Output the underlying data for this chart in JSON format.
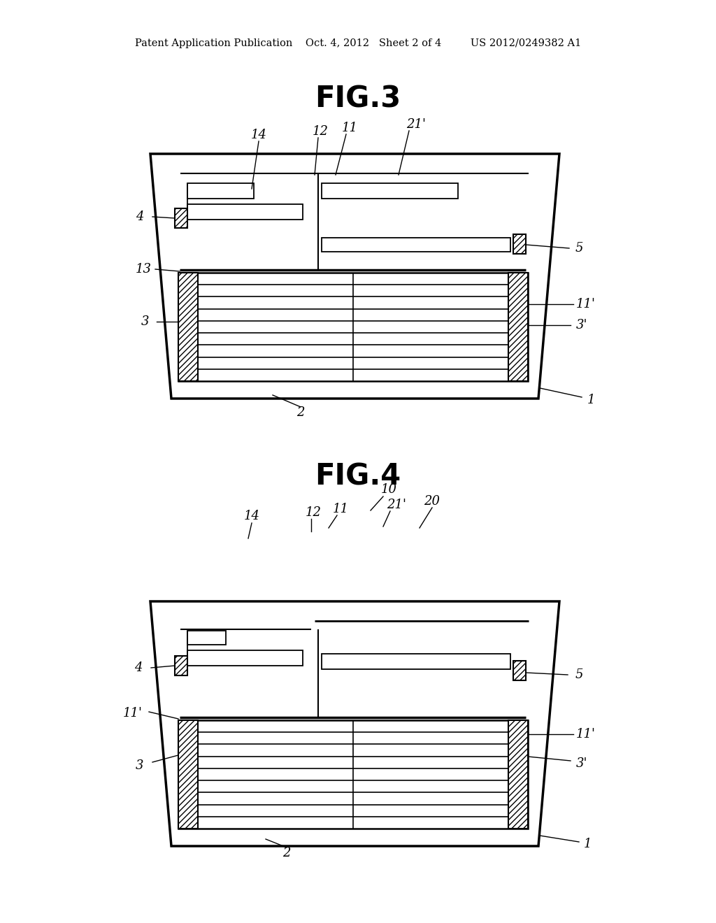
{
  "bg_color": "#ffffff",
  "line_color": "#000000",
  "header_text": "Patent Application Publication    Oct. 4, 2012   Sheet 2 of 4         US 2012/0249382 A1",
  "fig3_title": "FIG.3",
  "fig4_title": "FIG.4"
}
